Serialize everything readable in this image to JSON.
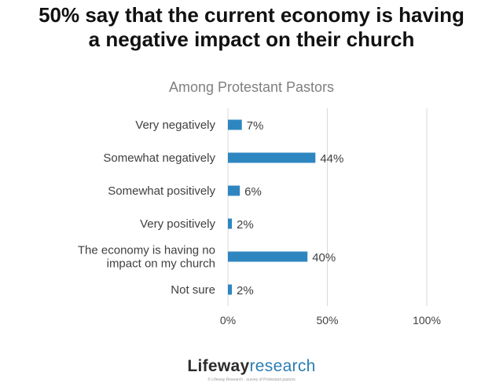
{
  "title_line1": "50% say that the current economy is having",
  "title_line2": "a negative impact on their church",
  "colors": {
    "bar": "#2e86c1",
    "grid": "#d9d9d9",
    "text": "#404040"
  },
  "chart_data": {
    "type": "bar",
    "orientation": "horizontal",
    "title": "Among Protestant Pastors",
    "categories": [
      [
        "Very negatively"
      ],
      [
        "Somewhat negatively"
      ],
      [
        "Somewhat positively"
      ],
      [
        "Very positively"
      ],
      [
        "The economy is having no",
        "impact on my church"
      ],
      [
        "Not sure"
      ]
    ],
    "values": [
      7,
      44,
      6,
      2,
      40,
      2
    ],
    "value_labels": [
      "7%",
      "44%",
      "6%",
      "2%",
      "40%",
      "2%"
    ],
    "xlim": [
      0,
      100
    ],
    "xticks": [
      0,
      50,
      100
    ],
    "xtick_labels": [
      "0%",
      "50%",
      "100%"
    ],
    "grid": true
  },
  "logo": {
    "brand": "Lifeway",
    "sub": "research"
  },
  "footnote": "© Lifeway Research · survey of Protestant pastors"
}
